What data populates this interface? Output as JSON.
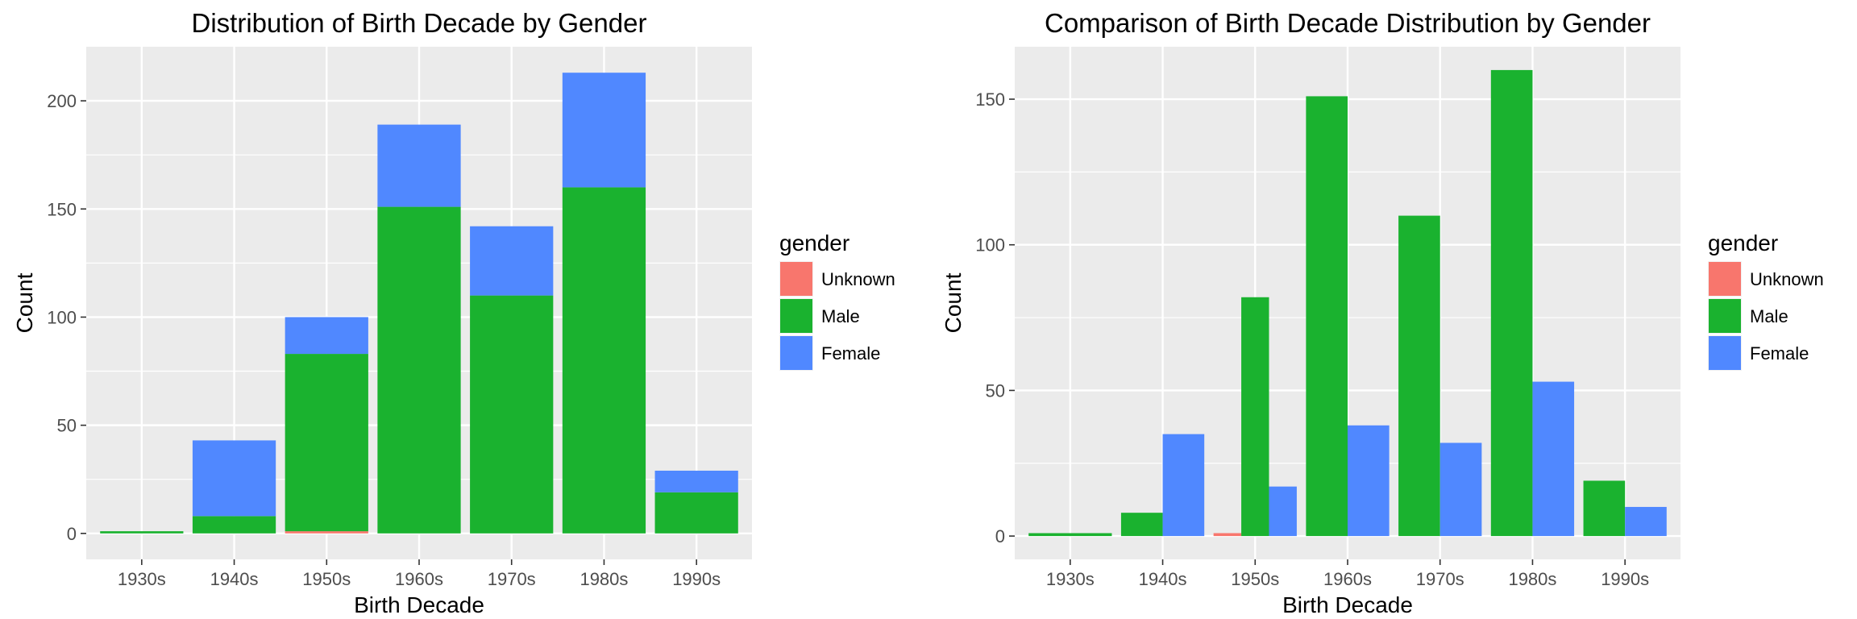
{
  "charts": [
    {
      "type": "bar",
      "stacked": true,
      "title": "Distribution of Birth Decade by Gender",
      "xlabel": "Birth Decade",
      "ylabel": "Count",
      "categories": [
        "1930s",
        "1940s",
        "1950s",
        "1960s",
        "1970s",
        "1980s",
        "1990s"
      ],
      "ylim": [
        -12,
        225
      ],
      "yticks": [
        0,
        50,
        100,
        150,
        200
      ],
      "series": [
        {
          "name": "Unknown",
          "color": "#F8766D",
          "values": [
            0,
            0,
            1,
            0,
            0,
            0,
            0
          ]
        },
        {
          "name": "Male",
          "color": "#1AB22F",
          "values": [
            1,
            8,
            82,
            151,
            110,
            160,
            19
          ]
        },
        {
          "name": "Female",
          "color": "#5088FF",
          "values": [
            0,
            35,
            17,
            38,
            32,
            53,
            10
          ]
        }
      ],
      "legend_title": "gender",
      "legend_position": "right",
      "grid": true
    },
    {
      "type": "bar",
      "stacked": false,
      "title": "Comparison of Birth Decade Distribution by Gender",
      "xlabel": "Birth Decade",
      "ylabel": "Count",
      "categories": [
        "1930s",
        "1940s",
        "1950s",
        "1960s",
        "1970s",
        "1980s",
        "1990s"
      ],
      "ylim": [
        -8,
        168
      ],
      "yticks": [
        0,
        50,
        100,
        150
      ],
      "series": [
        {
          "name": "Unknown",
          "color": "#F8766D",
          "values": [
            null,
            null,
            1,
            null,
            null,
            null,
            null
          ]
        },
        {
          "name": "Male",
          "color": "#1AB22F",
          "values": [
            1,
            8,
            82,
            151,
            110,
            160,
            19
          ]
        },
        {
          "name": "Female",
          "color": "#5088FF",
          "values": [
            null,
            35,
            17,
            38,
            32,
            53,
            10
          ]
        }
      ],
      "legend_title": "gender",
      "legend_position": "right",
      "grid": true
    }
  ]
}
